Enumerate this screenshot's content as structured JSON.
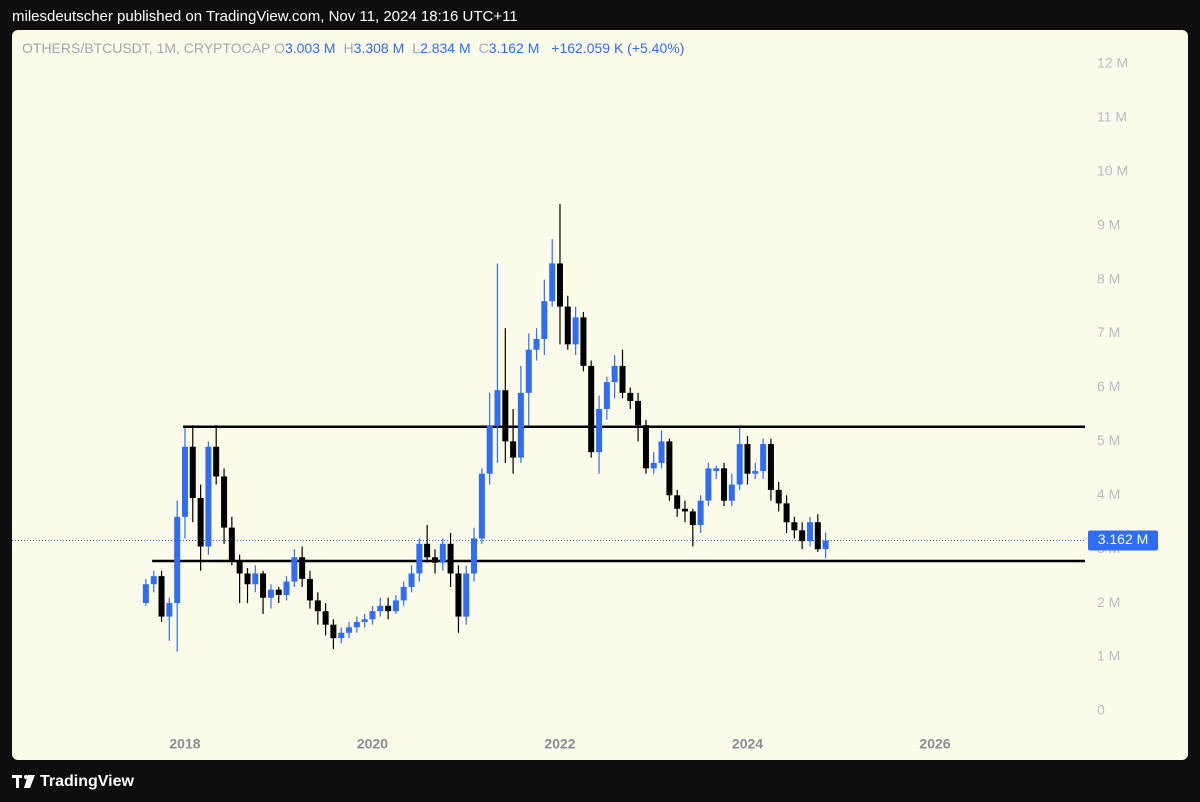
{
  "page": {
    "publisher": "milesdeutscher published on TradingView.com, Nov 11, 2024 18:16 UTC+11",
    "brand": "TradingView"
  },
  "chart_data": {
    "type": "candlestick",
    "header": {
      "symbol": "OTHERS/BTCUSDT, 1M, CRYPTOCAP",
      "ohlc": [
        {
          "key": "O",
          "value": "3.003 M"
        },
        {
          "key": "H",
          "value": "3.308 M"
        },
        {
          "key": "L",
          "value": "2.834 M"
        },
        {
          "key": "C",
          "value": "3.162 M"
        }
      ],
      "change": "+162.059 K (+5.40%)"
    },
    "x": [
      2017.583,
      2017.667,
      2017.75,
      2017.833,
      2017.917,
      2018.0,
      2018.083,
      2018.167,
      2018.25,
      2018.333,
      2018.417,
      2018.5,
      2018.583,
      2018.667,
      2018.75,
      2018.833,
      2018.917,
      2019.0,
      2019.083,
      2019.167,
      2019.25,
      2019.333,
      2019.417,
      2019.5,
      2019.583,
      2019.667,
      2019.75,
      2019.833,
      2019.917,
      2020.0,
      2020.083,
      2020.167,
      2020.25,
      2020.333,
      2020.417,
      2020.5,
      2020.583,
      2020.667,
      2020.75,
      2020.833,
      2020.917,
      2021.0,
      2021.083,
      2021.167,
      2021.25,
      2021.333,
      2021.417,
      2021.5,
      2021.583,
      2021.667,
      2021.75,
      2021.833,
      2021.917,
      2022.0,
      2022.083,
      2022.167,
      2022.25,
      2022.333,
      2022.417,
      2022.5,
      2022.583,
      2022.667,
      2022.75,
      2022.833,
      2022.917,
      2023.0,
      2023.083,
      2023.167,
      2023.25,
      2023.333,
      2023.417,
      2023.5,
      2023.583,
      2023.667,
      2023.75,
      2023.833,
      2023.917,
      2024.0,
      2024.083,
      2024.167,
      2024.25,
      2024.333,
      2024.417,
      2024.5,
      2024.583,
      2024.667,
      2024.75,
      2024.833
    ],
    "open": [
      2.0,
      2.35,
      2.5,
      1.75,
      2.0,
      3.6,
      4.9,
      3.95,
      3.05,
      4.9,
      4.35,
      3.4,
      2.8,
      2.55,
      2.35,
      2.55,
      2.1,
      2.25,
      2.15,
      2.4,
      2.85,
      2.45,
      2.05,
      1.85,
      1.6,
      1.35,
      1.45,
      1.55,
      1.65,
      1.7,
      1.85,
      1.95,
      1.85,
      2.05,
      2.3,
      2.55,
      3.1,
      2.85,
      2.75,
      3.1,
      2.55,
      1.75,
      2.55,
      3.2,
      4.4,
      5.3,
      5.95,
      5.0,
      4.7,
      5.9,
      6.7,
      6.9,
      7.6,
      8.3,
      7.5,
      6.8,
      7.3,
      6.4,
      4.8,
      5.6,
      6.1,
      6.4,
      5.9,
      5.75,
      5.3,
      4.5,
      4.6,
      5.0,
      4.0,
      3.75,
      3.7,
      3.45,
      3.9,
      4.45,
      4.5,
      3.9,
      4.2,
      4.95,
      4.4,
      4.45,
      4.95,
      4.1,
      3.85,
      3.5,
      3.35,
      3.15,
      3.5,
      3.003
    ],
    "high": [
      2.45,
      2.6,
      2.6,
      2.1,
      3.9,
      5.25,
      5.3,
      4.2,
      5.0,
      5.3,
      4.5,
      3.6,
      2.9,
      2.65,
      2.7,
      2.6,
      2.35,
      2.3,
      2.5,
      3.0,
      3.05,
      2.6,
      2.2,
      2.0,
      1.7,
      1.55,
      1.65,
      1.75,
      1.8,
      1.95,
      2.1,
      2.1,
      2.15,
      2.4,
      2.7,
      3.2,
      3.45,
      3.0,
      3.2,
      3.3,
      2.7,
      2.7,
      3.4,
      4.5,
      5.9,
      8.3,
      7.1,
      5.6,
      6.4,
      7.0,
      7.1,
      8.0,
      8.75,
      9.4,
      7.7,
      7.5,
      7.4,
      6.5,
      5.85,
      6.2,
      6.6,
      6.7,
      6.0,
      5.9,
      5.4,
      4.8,
      5.2,
      5.05,
      4.1,
      3.9,
      3.75,
      4.0,
      4.6,
      4.55,
      4.6,
      4.4,
      5.25,
      5.1,
      4.6,
      5.05,
      5.05,
      4.25,
      4.0,
      3.6,
      3.5,
      3.6,
      3.65,
      3.308
    ],
    "low": [
      1.95,
      2.2,
      1.65,
      1.3,
      1.1,
      3.2,
      3.5,
      2.6,
      2.9,
      4.2,
      3.1,
      2.7,
      2.0,
      2.0,
      2.2,
      1.8,
      1.9,
      2.0,
      2.05,
      2.3,
      2.3,
      1.9,
      1.6,
      1.4,
      1.15,
      1.25,
      1.35,
      1.45,
      1.55,
      1.6,
      1.75,
      1.7,
      1.8,
      1.95,
      2.2,
      2.4,
      2.75,
      2.55,
      2.6,
      2.3,
      1.45,
      1.6,
      2.4,
      3.1,
      4.2,
      4.6,
      4.6,
      4.4,
      4.6,
      5.3,
      6.5,
      6.6,
      7.5,
      6.8,
      6.7,
      6.6,
      6.3,
      4.7,
      4.4,
      5.4,
      5.8,
      5.8,
      5.6,
      5.0,
      4.4,
      4.4,
      4.5,
      3.9,
      3.6,
      3.5,
      3.05,
      3.3,
      3.8,
      4.3,
      3.8,
      3.8,
      4.1,
      4.2,
      4.3,
      4.3,
      3.9,
      3.7,
      3.3,
      3.2,
      3.0,
      3.05,
      2.95,
      2.834
    ],
    "close": [
      2.35,
      2.5,
      1.75,
      2.0,
      3.6,
      4.9,
      3.95,
      3.05,
      4.9,
      4.35,
      3.4,
      2.8,
      2.55,
      2.35,
      2.55,
      2.1,
      2.25,
      2.15,
      2.4,
      2.85,
      2.45,
      2.05,
      1.85,
      1.6,
      1.35,
      1.45,
      1.55,
      1.65,
      1.7,
      1.85,
      1.95,
      1.85,
      2.05,
      2.3,
      2.55,
      3.1,
      2.85,
      2.75,
      3.1,
      2.55,
      1.75,
      2.55,
      3.2,
      4.4,
      5.3,
      5.95,
      5.0,
      4.7,
      5.9,
      6.7,
      6.9,
      7.6,
      8.3,
      7.5,
      6.8,
      7.3,
      6.4,
      4.8,
      5.6,
      6.1,
      6.4,
      5.9,
      5.75,
      5.3,
      4.5,
      4.6,
      5.0,
      4.0,
      3.75,
      3.7,
      3.45,
      3.9,
      4.5,
      4.5,
      3.9,
      4.2,
      4.95,
      4.4,
      4.45,
      4.95,
      4.1,
      3.85,
      3.5,
      3.35,
      3.15,
      3.5,
      3.0,
      3.162
    ],
    "up_color": "#2f6df6",
    "down_color": "#000000",
    "xlim": [
      2016.155,
      2027.6
    ],
    "xticks": [
      2018,
      2020,
      2022,
      2024,
      2026
    ],
    "ylim": [
      -0.91,
      12.63
    ],
    "yticks": [
      0,
      {
        "value": 1,
        "label": "1 M"
      },
      {
        "value": 2,
        "label": "2 M"
      },
      {
        "value": 3,
        "label": "3 M"
      },
      {
        "value": 4,
        "label": "4 M"
      },
      {
        "value": 5,
        "label": "5 M"
      },
      {
        "value": 6,
        "label": "6 M"
      },
      {
        "value": 7,
        "label": "7 M"
      },
      {
        "value": 8,
        "label": "8 M"
      },
      {
        "value": 9,
        "label": "9 M"
      },
      {
        "value": 10,
        "label": "10 M"
      },
      {
        "value": 11,
        "label": "11 M"
      },
      {
        "value": 12,
        "label": "12 M"
      }
    ],
    "grid": false,
    "hlines": [
      {
        "value": 5.27,
        "from": 2017.98
      },
      {
        "value": 2.78,
        "from": 2017.65
      }
    ],
    "last_price": {
      "value": 3.162,
      "label": "3.162 M"
    }
  }
}
